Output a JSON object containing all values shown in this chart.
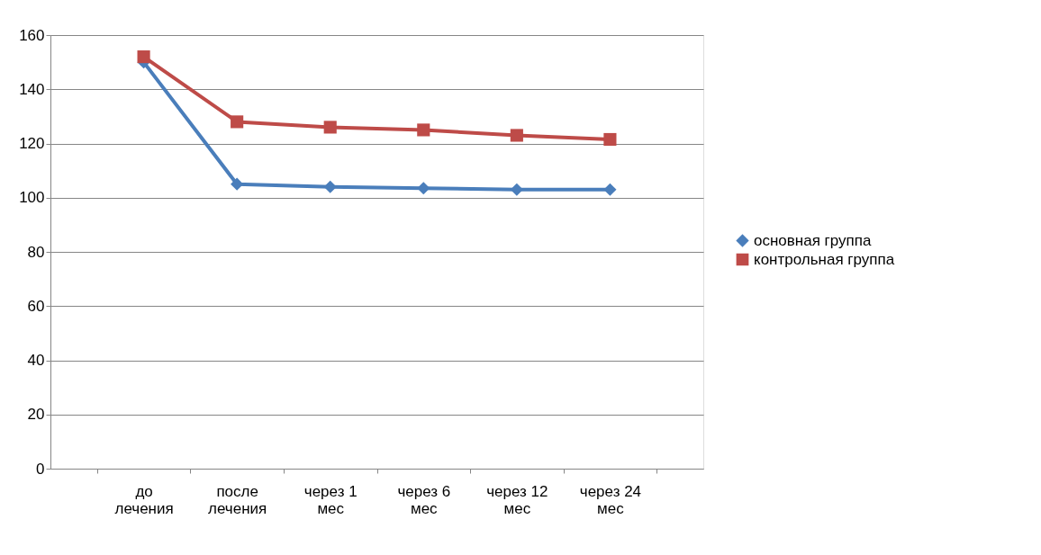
{
  "chart_data": {
    "type": "line",
    "categories": [
      "до\nлечения",
      "после\nлечения",
      "через 1\nмес",
      "через 6\nмес",
      "через 12\nмес",
      "через 24\nмес"
    ],
    "series": [
      {
        "name": "основная группа",
        "color": "#4a7ebb",
        "marker": "diamond",
        "values": [
          150,
          105,
          104,
          103.5,
          103,
          103
        ]
      },
      {
        "name": "контрольная группа",
        "color": "#be4b48",
        "marker": "square",
        "values": [
          152,
          128,
          126,
          125,
          123,
          121.5
        ]
      }
    ],
    "ylim": [
      0,
      160
    ],
    "yticks": [
      0,
      20,
      40,
      60,
      80,
      100,
      120,
      140,
      160
    ],
    "grid": "y",
    "legend": "right",
    "line_style": "solid"
  }
}
